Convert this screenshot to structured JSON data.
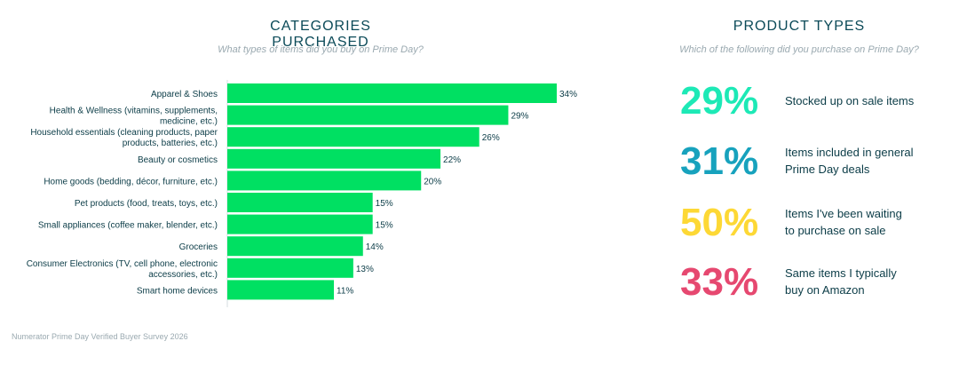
{
  "left_panel": {
    "title": "CATEGORIES PURCHASED",
    "subtitle": "What types of items did you buy on Prime Day?"
  },
  "chart_data": {
    "type": "bar",
    "orientation": "horizontal",
    "categories": [
      [
        "Apparel & Shoes"
      ],
      [
        "Health & Wellness (vitamins, supplements,",
        "medicine, etc.)"
      ],
      [
        "Household essentials (cleaning products, paper",
        "products, batteries, etc.)"
      ],
      [
        "Beauty or cosmetics"
      ],
      [
        "Home goods (bedding, décor, furniture, etc.)"
      ],
      [
        "Pet products (food, treats, toys, etc.)"
      ],
      [
        "Small appliances (coffee maker, blender, etc.)"
      ],
      [
        "Groceries"
      ],
      [
        "Consumer Electronics (TV, cell phone, electronic",
        "accessories, etc.)"
      ],
      [
        "Smart home devices"
      ]
    ],
    "values": [
      34,
      29,
      26,
      22,
      20,
      15,
      15,
      14,
      13,
      11
    ],
    "value_labels": [
      "34%",
      "29%",
      "26%",
      "22%",
      "20%",
      "15%",
      "15%",
      "14%",
      "13%",
      "11%"
    ],
    "unit": "%",
    "bar_color": "#00e062",
    "grid": false,
    "legend": false
  },
  "right_panel": {
    "title": "PRODUCT TYPES",
    "subtitle": "Which of the following did you purchase on Prime Day?",
    "stats": [
      {
        "pct": "29%",
        "color": "#1de9b6",
        "lines": [
          "Stocked up on sale items"
        ]
      },
      {
        "pct": "31%",
        "color": "#17a2bd",
        "lines": [
          "Items included in general",
          "Prime Day deals"
        ]
      },
      {
        "pct": "50%",
        "color": "#fdd835",
        "lines": [
          "Items I've been waiting",
          "to purchase on sale"
        ]
      },
      {
        "pct": "33%",
        "color": "#e64870",
        "lines": [
          "Same items I typically",
          "buy on Amazon"
        ]
      }
    ]
  },
  "source": "Numerator Prime Day Verified Buyer Survey 2026"
}
